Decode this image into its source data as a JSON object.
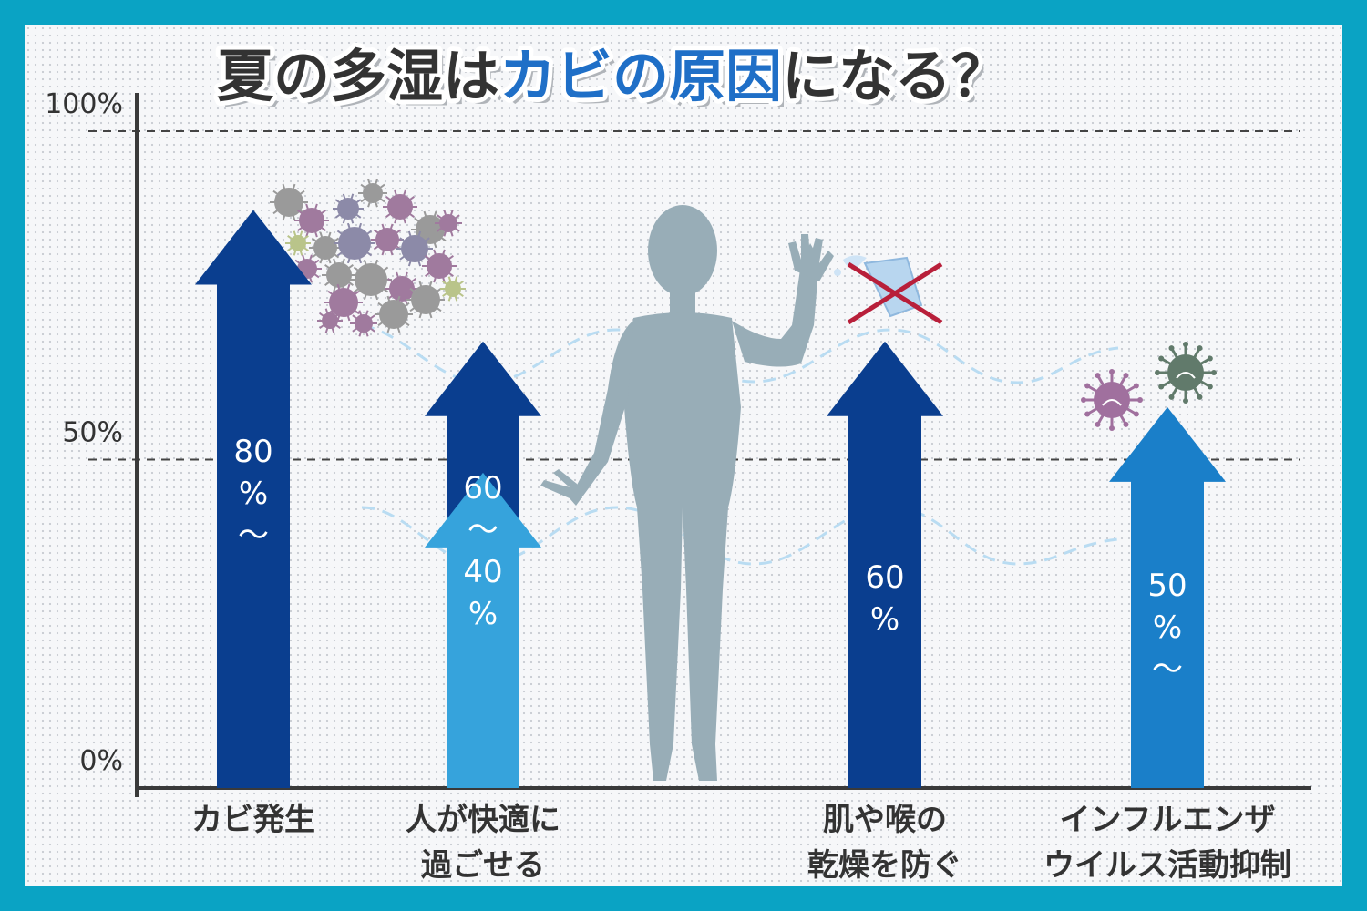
{
  "title": {
    "part1": "夏の多湿は",
    "part2": "カビの原因",
    "part3": "になる？"
  },
  "chart_data": {
    "type": "bar",
    "title": "夏の多湿はカビの原因になる？",
    "ylim": [
      0,
      100
    ],
    "y_ticks": [
      {
        "value": 0,
        "label": "0%"
      },
      {
        "value": 50,
        "label": "50%"
      },
      {
        "value": 100,
        "label": "100%"
      }
    ],
    "grid": "dashed lines at 50% and 100%",
    "categories": [
      {
        "lines": [
          "カビ発生"
        ],
        "value": 80,
        "range": "80%〜",
        "value_lines": [
          "80",
          "%",
          "〜"
        ],
        "color": "#0a3e8f"
      },
      {
        "lines": [
          "人が快適に",
          "過ごせる"
        ],
        "value": 60,
        "range_low": 40,
        "range": "60〜40%",
        "value_lines": [
          "60",
          "〜",
          "40",
          "%"
        ],
        "color": "#0a3e8f",
        "color_low": "#36a3dc"
      },
      {
        "lines": [
          "肌や喉の",
          "乾燥を防ぐ"
        ],
        "value": 60,
        "range": "60%",
        "value_lines": [
          "60",
          "%"
        ],
        "color": "#0a3e8f"
      },
      {
        "lines": [
          "インフルエンザ",
          "ウイルス活動抑制"
        ],
        "value": 50,
        "range": "50%〜",
        "value_lines": [
          "50",
          "%",
          "〜"
        ],
        "color": "#1a7fc9"
      }
    ]
  },
  "colors": {
    "frame": "#0aa3c4",
    "title_accent": "#1f6fc7",
    "title_text": "#333333",
    "silhouette": "#98adb7",
    "cross": "#b81f3a"
  },
  "decorations": [
    "mold-cluster-icon",
    "human-silhouette-icon",
    "water-glass-icon",
    "red-cross-icon",
    "virus-icon"
  ]
}
